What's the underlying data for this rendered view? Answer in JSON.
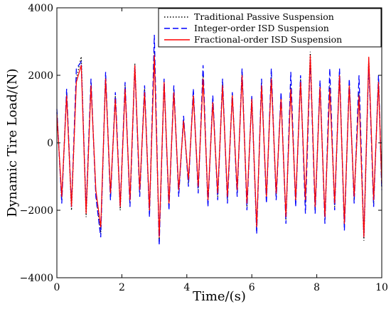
{
  "chart_data": {
    "type": "line",
    "title": "",
    "xlabel": "Time/(s)",
    "ylabel": "Dynamic Tire Load/(N)",
    "xlim": [
      0,
      10
    ],
    "ylim": [
      -4000,
      4000
    ],
    "xticks": [
      0,
      2,
      4,
      6,
      8,
      10
    ],
    "yticks": [
      -4000,
      -2000,
      0,
      2000,
      4000
    ],
    "xtick_labels": [
      "0",
      "2",
      "4",
      "6",
      "8",
      "10"
    ],
    "ytick_labels": [
      "−4000",
      "−2000",
      "0",
      "2000",
      "4000"
    ],
    "grid": false,
    "legend_position": "top-right",
    "series": [
      {
        "name": "Traditional Passive Suspension",
        "color": "#000000",
        "style": "dotted",
        "x": [
          0,
          0.15,
          0.3,
          0.45,
          0.6,
          0.75,
          0.9,
          1.05,
          1.2,
          1.35,
          1.5,
          1.65,
          1.8,
          1.95,
          2.1,
          2.25,
          2.4,
          2.55,
          2.7,
          2.85,
          3.0,
          3.15,
          3.3,
          3.45,
          3.6,
          3.75,
          3.9,
          4.05,
          4.2,
          4.35,
          4.5,
          4.65,
          4.8,
          4.95,
          5.1,
          5.25,
          5.4,
          5.55,
          5.7,
          5.85,
          6.0,
          6.15,
          6.3,
          6.45,
          6.6,
          6.75,
          6.9,
          7.05,
          7.2,
          7.35,
          7.5,
          7.65,
          7.8,
          7.95,
          8.1,
          8.25,
          8.4,
          8.55,
          8.7,
          8.85,
          9.0,
          9.15,
          9.3,
          9.45,
          9.6,
          9.75,
          9.9,
          10.0
        ],
        "y": [
          900,
          -1700,
          1500,
          -2000,
          1900,
          2550,
          -2200,
          1800,
          -1500,
          -2700,
          2000,
          -1600,
          1400,
          -2000,
          1700,
          -1800,
          2350,
          -1500,
          1600,
          -2100,
          2700,
          -2950,
          1850,
          -1900,
          1600,
          -1500,
          700,
          -1200,
          1500,
          -1400,
          2000,
          -1800,
          1300,
          -1600,
          1800,
          -1700,
          1450,
          -1500,
          2100,
          -1900,
          1350,
          -2600,
          1800,
          -1700,
          2000,
          -1600,
          1400,
          -2300,
          1700,
          -1800,
          1900,
          -1800,
          2700,
          -2000,
          1750,
          -2300,
          1700,
          -1900,
          2100,
          -2500,
          1800,
          -1700,
          1500,
          -2900,
          2500,
          -1800,
          1900,
          -1300
        ]
      },
      {
        "name": "Integer-order ISD Suspension",
        "color": "#0000ff",
        "style": "dashed",
        "x": [
          0,
          0.15,
          0.3,
          0.45,
          0.6,
          0.75,
          0.9,
          1.05,
          1.2,
          1.35,
          1.5,
          1.65,
          1.8,
          1.95,
          2.1,
          2.25,
          2.4,
          2.55,
          2.7,
          2.85,
          3.0,
          3.15,
          3.3,
          3.45,
          3.6,
          3.75,
          3.9,
          4.05,
          4.2,
          4.35,
          4.5,
          4.65,
          4.8,
          4.95,
          5.1,
          5.25,
          5.4,
          5.55,
          5.7,
          5.85,
          6.0,
          6.15,
          6.3,
          6.45,
          6.6,
          6.75,
          6.9,
          7.05,
          7.2,
          7.35,
          7.5,
          7.65,
          7.8,
          7.95,
          8.1,
          8.25,
          8.4,
          8.55,
          8.7,
          8.85,
          9.0,
          9.15,
          9.3,
          9.45,
          9.6,
          9.75,
          9.9,
          10.0
        ],
        "y": [
          1000,
          -1800,
          1600,
          -1900,
          2200,
          2400,
          -2000,
          1900,
          -1600,
          -2800,
          2100,
          -1700,
          1500,
          -1900,
          1800,
          -1900,
          2300,
          -1600,
          1700,
          -2200,
          3200,
          -3050,
          1900,
          -2000,
          1700,
          -1600,
          800,
          -1300,
          1600,
          -1500,
          2300,
          -1900,
          1400,
          -1700,
          1900,
          -1800,
          1500,
          -1600,
          2200,
          -2000,
          1400,
          -2700,
          1900,
          -1800,
          2200,
          -1700,
          1500,
          -2400,
          2100,
          -1900,
          2000,
          -2100,
          2500,
          -2100,
          1850,
          -2400,
          2200,
          -2000,
          2200,
          -2600,
          1900,
          -1800,
          2000,
          -2800,
          2400,
          -1900,
          2000,
          -1400
        ]
      },
      {
        "name": "Fractional-order ISD Suspension",
        "color": "#ff0000",
        "style": "solid",
        "x": [
          0,
          0.15,
          0.3,
          0.45,
          0.6,
          0.75,
          0.9,
          1.05,
          1.2,
          1.35,
          1.5,
          1.65,
          1.8,
          1.95,
          2.1,
          2.25,
          2.4,
          2.55,
          2.7,
          2.85,
          3.0,
          3.15,
          3.3,
          3.45,
          3.6,
          3.75,
          3.9,
          4.05,
          4.2,
          4.35,
          4.5,
          4.65,
          4.8,
          4.95,
          5.1,
          5.25,
          5.4,
          5.55,
          5.7,
          5.85,
          6.0,
          6.15,
          6.3,
          6.45,
          6.6,
          6.75,
          6.9,
          7.05,
          7.2,
          7.35,
          7.5,
          7.65,
          7.8,
          7.95,
          8.1,
          8.25,
          8.4,
          8.55,
          8.7,
          8.85,
          9.0,
          9.15,
          9.3,
          9.45,
          9.6,
          9.75,
          9.9,
          10.0
        ],
        "y": [
          850,
          -1600,
          1400,
          -1900,
          1800,
          2300,
          -2100,
          1700,
          -1400,
          -2500,
          1900,
          -1500,
          1300,
          -1900,
          1600,
          -1700,
          2300,
          -1400,
          1500,
          -2000,
          2600,
          -2800,
          1800,
          -1800,
          1500,
          -1400,
          650,
          -1100,
          1400,
          -1300,
          1900,
          -1700,
          1200,
          -1500,
          1700,
          -1600,
          1400,
          -1400,
          2000,
          -1800,
          1300,
          -2500,
          1700,
          -1600,
          1900,
          -1500,
          1300,
          -2200,
          1600,
          -1700,
          1800,
          -1700,
          2600,
          -1900,
          1650,
          -2200,
          1600,
          -1800,
          2000,
          -2400,
          1700,
          -1600,
          1400,
          -2800,
          2550,
          -1700,
          1800,
          -1200
        ]
      }
    ]
  }
}
